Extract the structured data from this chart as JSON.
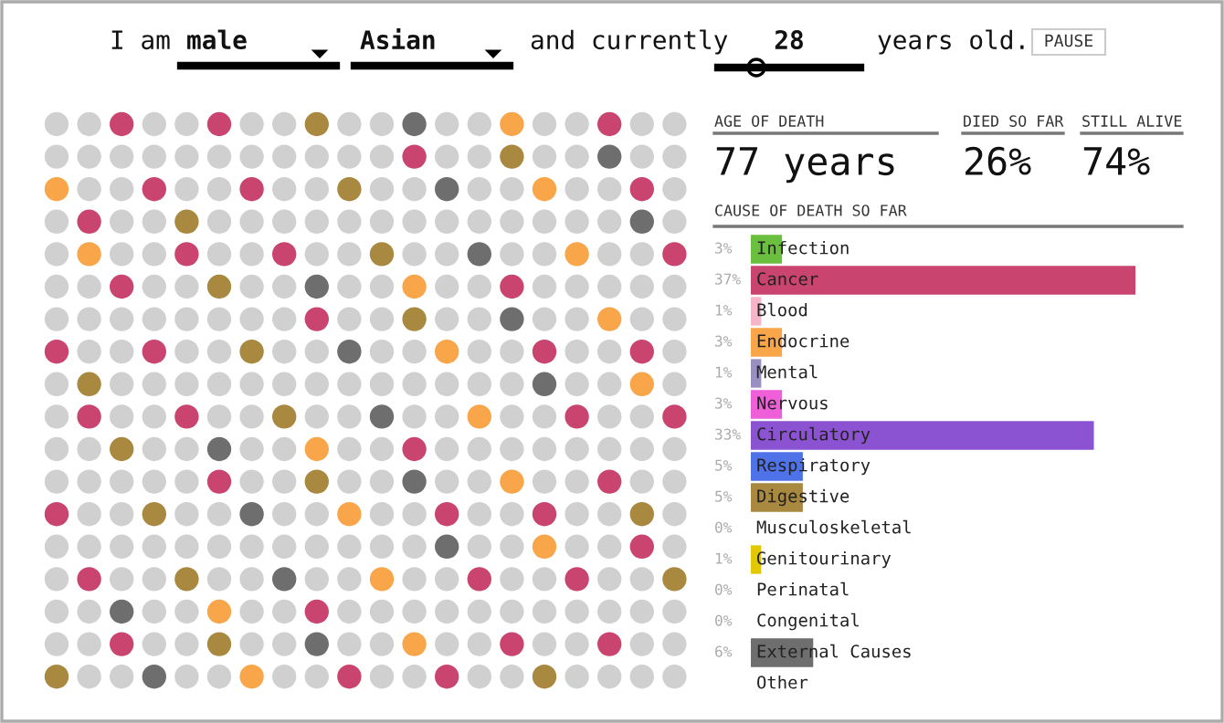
{
  "chart_data": [
    {
      "type": "other",
      "annotations": [
        "I am",
        "male",
        "Asian",
        "and currently",
        "28",
        "years old.",
        "PAUSE",
        "AGE OF DEATH",
        "77 years",
        "DIED SO FAR",
        "26%",
        "STILL ALIVE",
        "74%"
      ]
    },
    {
      "type": "bar",
      "orientation": "horizontal",
      "title": "CAUSE OF DEATH SO FAR",
      "categories": [
        "Infection",
        "Cancer",
        "Blood",
        "Endocrine",
        "Mental",
        "Nervous",
        "Circulatory",
        "Respiratory",
        "Digestive",
        "Musculoskeletal",
        "Genitourinary",
        "Perinatal",
        "Congenital",
        "External Causes",
        "Other"
      ],
      "values": [
        3,
        37,
        1,
        3,
        1,
        3,
        33,
        5,
        5,
        0,
        1,
        0,
        0,
        6,
        null
      ],
      "value_labels": [
        "3%",
        "37%",
        "1%",
        "3%",
        "1%",
        "3%",
        "33%",
        "5%",
        "5%",
        "0%",
        "1%",
        "0%",
        "0%",
        "6%",
        null
      ],
      "colors": [
        "#6abf3f",
        "#c9446e",
        "#f7b6c8",
        "#f9a54a",
        "#9a8fc0",
        "#ee5fd8",
        "#8b53d2",
        "#4f72e8",
        "#a98840",
        "#cccccc",
        "#e3c700",
        "#cccccc",
        "#cccccc",
        "#6e6e6e",
        "#aaaaaa"
      ],
      "legend": false
    }
  ]
}
